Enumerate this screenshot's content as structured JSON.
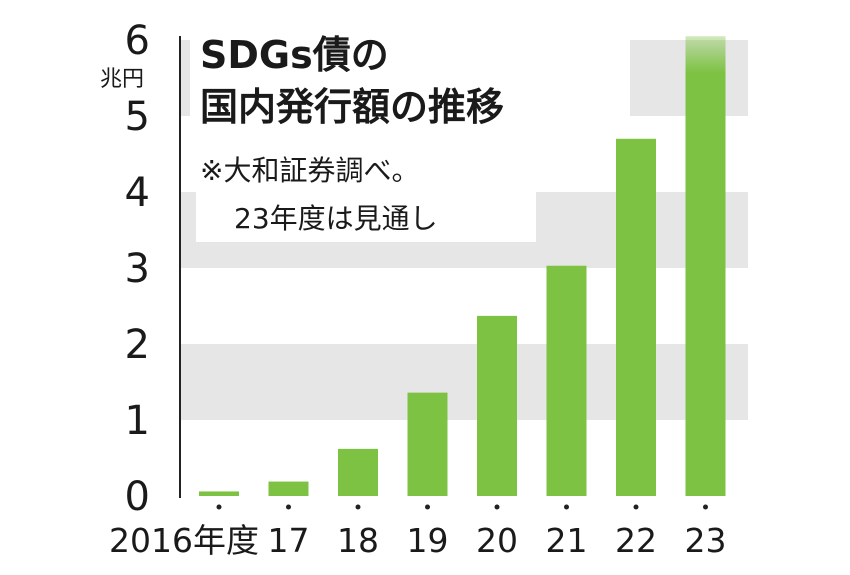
{
  "chart_data": {
    "type": "bar",
    "title_lines": [
      "SDGs債の",
      "国内発行額の推移"
    ],
    "note_lines": [
      "※大和証券調べ。",
      "23年度は見通し"
    ],
    "ylabel": "兆円",
    "xlabel": "",
    "ylim": [
      0,
      6
    ],
    "yticks": [
      "0",
      "1",
      "2",
      "3",
      "4",
      "5",
      "6"
    ],
    "grid": true,
    "categories": [
      "2016年度",
      "17",
      "18",
      "19",
      "20",
      "21",
      "22",
      "23"
    ],
    "values": [
      0.06,
      0.19,
      0.62,
      1.36,
      2.37,
      3.03,
      4.7,
      6.05
    ],
    "projected_category": "23",
    "colors": {
      "bar": "#7dc242",
      "band": "#e6e6e6",
      "text": "#1a1a1a",
      "axis": "#222222"
    }
  }
}
